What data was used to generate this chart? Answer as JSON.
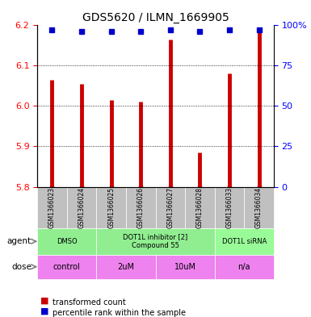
{
  "title": "GDS5620 / ILMN_1669905",
  "samples": [
    "GSM1366023",
    "GSM1366024",
    "GSM1366025",
    "GSM1366026",
    "GSM1366027",
    "GSM1366028",
    "GSM1366033",
    "GSM1366034"
  ],
  "red_values": [
    6.065,
    6.055,
    6.015,
    6.01,
    6.165,
    5.885,
    6.08,
    6.195
  ],
  "blue_values": [
    97,
    96,
    96,
    96,
    97,
    96,
    97,
    97
  ],
  "ylim_left": [
    5.8,
    6.2
  ],
  "ylim_right": [
    0,
    100
  ],
  "yticks_left": [
    5.8,
    5.9,
    6.0,
    6.1,
    6.2
  ],
  "yticks_right": [
    0,
    25,
    50,
    75,
    100
  ],
  "agent_groups": [
    {
      "label": "DMSO",
      "cols": [
        0,
        1
      ],
      "color": "#90EE90"
    },
    {
      "label": "DOT1L inhibitor [2]\nCompound 55",
      "cols": [
        2,
        3,
        4,
        5
      ],
      "color": "#90EE90"
    },
    {
      "label": "DOT1L siRNA",
      "cols": [
        6,
        7
      ],
      "color": "#90EE90"
    }
  ],
  "dose_groups": [
    {
      "label": "control",
      "cols": [
        0,
        1
      ],
      "color": "#EE82EE"
    },
    {
      "label": "2uM",
      "cols": [
        2,
        3
      ],
      "color": "#EE82EE"
    },
    {
      "label": "10uM",
      "cols": [
        4,
        5
      ],
      "color": "#EE82EE"
    },
    {
      "label": "n/a",
      "cols": [
        6,
        7
      ],
      "color": "#EE82EE"
    }
  ],
  "agent_colors": [
    "#90EE90",
    "#90EE90",
    "#90EE90"
  ],
  "dose_color": "#EE82EE",
  "sample_bg": "#C0C0C0",
  "bar_color": "#CC0000",
  "dot_color": "#0000CC",
  "legend_red": "transformed count",
  "legend_blue": "percentile rank within the sample",
  "agent_label": "agent",
  "dose_label": "dose"
}
